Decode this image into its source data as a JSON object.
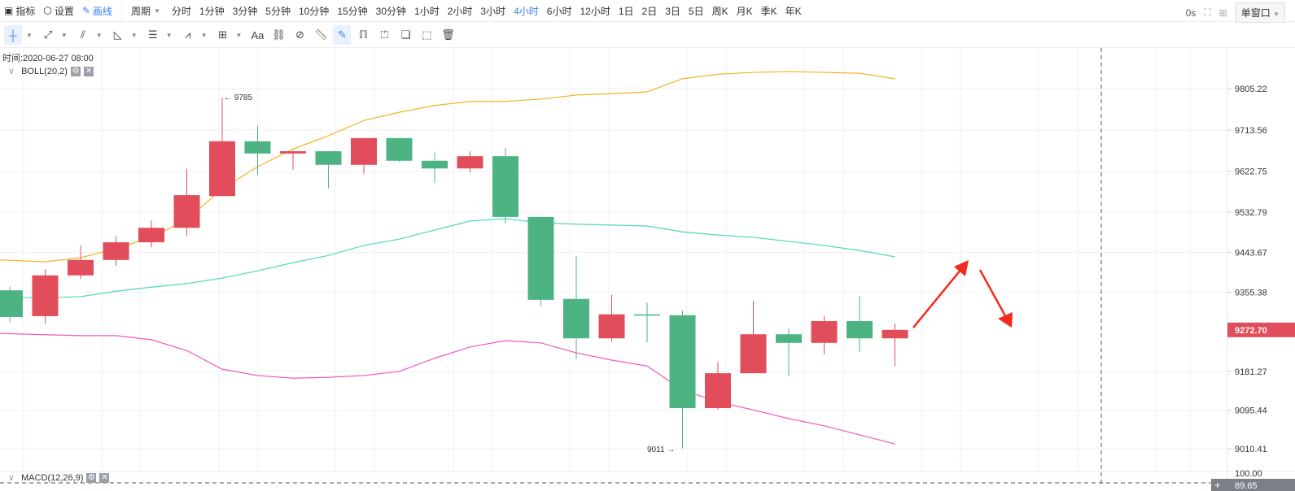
{
  "topbar": {
    "indicator": "指标",
    "settings": "设置",
    "draw": "画线",
    "period_label": "周期",
    "periods": [
      "分时",
      "1分钟",
      "3分钟",
      "5分钟",
      "10分钟",
      "15分钟",
      "30分钟",
      "1小时",
      "2小时",
      "3小时",
      "4小时",
      "6小时",
      "12小时",
      "1日",
      "2日",
      "3日",
      "5日",
      "周K",
      "月K",
      "季K",
      "年K"
    ],
    "active_period": "4小时",
    "latency": "0s",
    "window_mode": "单窗口"
  },
  "toolbar": {
    "text_tool": "Aa"
  },
  "chart_header": {
    "time": "时间:2020-06-27 08:00",
    "boll": "BOLL(20,2)",
    "macd": "MACD(12,26,9)"
  },
  "colors": {
    "up": "#e14d5a",
    "down": "#4db383",
    "upper": "#f5b21b",
    "middle": "#4fd8b8",
    "lower": "#f05ab9",
    "arrow": "#f5291c",
    "accent": "#3c7ff5"
  },
  "chart_data": {
    "type": "candlestick",
    "y_ticks": [
      "9805.22",
      "9713.56",
      "9622.75",
      "9532.79",
      "9443.67",
      "9355.38",
      "9181.27",
      "9095.44",
      "9010.41"
    ],
    "ylim": [
      9010.41,
      9805.22
    ],
    "last_price": "9272.70",
    "high_label": "9785",
    "low_label": "9011",
    "macd_ticks": [
      "100.00",
      "89.65"
    ],
    "candles": [
      [
        9360,
        9368,
        9290,
        9301
      ],
      [
        9303,
        9407,
        9287,
        9393
      ],
      [
        9393,
        9459,
        9385,
        9427
      ],
      [
        9427,
        9479,
        9414,
        9466
      ],
      [
        9466,
        9514,
        9455,
        9498
      ],
      [
        9498,
        9628,
        9479,
        9570
      ],
      [
        9568,
        9785,
        9568,
        9689
      ],
      [
        9689,
        9723,
        9615,
        9662
      ],
      [
        9662,
        9669,
        9626,
        9667
      ],
      [
        9667,
        9667,
        9585,
        9637
      ],
      [
        9637,
        9696,
        9617,
        9696
      ],
      [
        9696,
        9697,
        9644,
        9646
      ],
      [
        9646,
        9664,
        9597,
        9629
      ],
      [
        9629,
        9667,
        9620,
        9656
      ],
      [
        9656,
        9674,
        9507,
        9522
      ],
      [
        9522,
        9522,
        9324,
        9339
      ],
      [
        9341,
        9436,
        9208,
        9254
      ],
      [
        9254,
        9350,
        9247,
        9307
      ],
      [
        9307,
        9333,
        9245,
        9305
      ],
      [
        9305,
        9315,
        9011,
        9100
      ],
      [
        9100,
        9202,
        9097,
        9177
      ],
      [
        9177,
        9337,
        9177,
        9263
      ],
      [
        9263,
        9276,
        9170,
        9244
      ],
      [
        9244,
        9303,
        9219,
        9292
      ],
      [
        9292,
        9348,
        9224,
        9254
      ],
      [
        9254,
        9287,
        9193,
        9272.7
      ]
    ],
    "boll_upper": [
      9427,
      9423,
      9432,
      9452,
      9477,
      9516,
      9584,
      9633,
      9672,
      9701,
      9735,
      9753,
      9768,
      9777,
      9777,
      9782,
      9791,
      9794,
      9798,
      9827,
      9837,
      9841,
      9843,
      9841,
      9839,
      9827
    ],
    "boll_middle": [
      9344,
      9344,
      9346,
      9358,
      9367,
      9375,
      9387,
      9403,
      9421,
      9437,
      9459,
      9473,
      9493,
      9513,
      9518,
      9509,
      9506,
      9504,
      9502,
      9489,
      9482,
      9477,
      9468,
      9459,
      9448,
      9434
    ],
    "boll_lower": [
      9265,
      9262,
      9260,
      9260,
      9251,
      9227,
      9186,
      9172,
      9166,
      9168,
      9172,
      9181,
      9210,
      9235,
      9249,
      9244,
      9222,
      9206,
      9193,
      9140,
      9114,
      9096,
      9077,
      9061,
      9041,
      9021
    ]
  }
}
